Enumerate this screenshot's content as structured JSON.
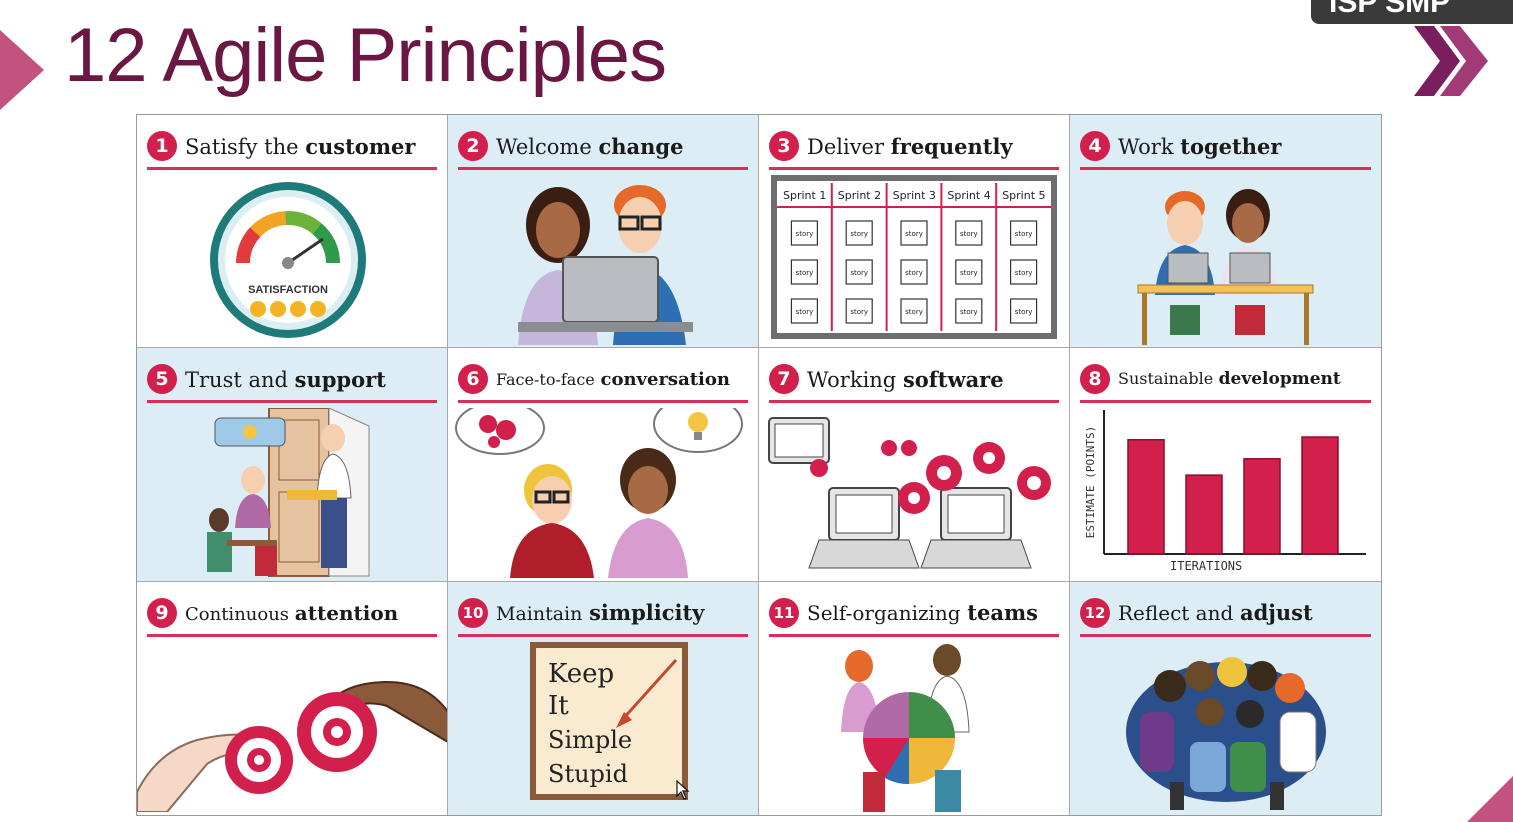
{
  "title": "12 Agile Principles",
  "corner_tab": "ISP SMP",
  "colors": {
    "title": "#6b1744",
    "accent": "#d31f4c",
    "cell_blue": "#dcedf5",
    "arrow_pink": "#c2527e"
  },
  "principles": [
    {
      "num": "1",
      "light": "Satisfy the",
      "bold": "customer"
    },
    {
      "num": "2",
      "light": "Welcome",
      "bold": "change"
    },
    {
      "num": "3",
      "light": "Deliver",
      "bold": "frequently"
    },
    {
      "num": "4",
      "light": "Work",
      "bold": "together"
    },
    {
      "num": "5",
      "light": "Trust and",
      "bold": "support"
    },
    {
      "num": "6",
      "light": "Face-to-face",
      "bold": "conversation"
    },
    {
      "num": "7",
      "light": "Working",
      "bold": "software"
    },
    {
      "num": "8",
      "light": "Sustainable",
      "bold": "development"
    },
    {
      "num": "9",
      "light": "Continuous",
      "bold": "attention"
    },
    {
      "num": "10",
      "light": "Maintain",
      "bold": "simplicity"
    },
    {
      "num": "11",
      "light": "Self-organizing",
      "bold": "teams"
    },
    {
      "num": "12",
      "light": "Reflect and",
      "bold": "adjust"
    }
  ],
  "satisfaction_label": "SATISFACTION",
  "sprints": [
    "Sprint 1",
    "Sprint 2",
    "Sprint 3",
    "Sprint 4",
    "Sprint 5"
  ],
  "story_label": "story",
  "chart": {
    "ylabel": "ESTIMATE (POINTS)",
    "xlabel": "ITERATIONS",
    "values": [
      4.2,
      2.9,
      3.5,
      4.3
    ],
    "ymax": 5
  },
  "kiss": [
    "Keep",
    "It",
    "Simple",
    "Stupid"
  ]
}
